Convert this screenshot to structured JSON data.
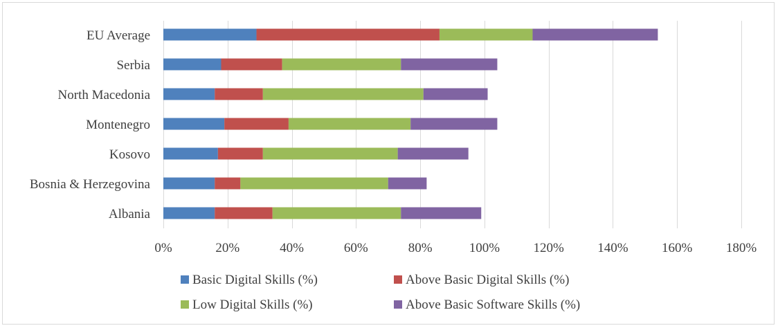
{
  "chart_data": {
    "type": "bar",
    "orientation": "horizontal",
    "stacked": true,
    "title": "",
    "xlabel": "",
    "ylabel": "",
    "xlim": [
      0,
      180
    ],
    "x_ticks": [
      0,
      20,
      40,
      60,
      80,
      100,
      120,
      140,
      160,
      180
    ],
    "x_tick_labels": [
      "0%",
      "20%",
      "40%",
      "60%",
      "80%",
      "100%",
      "120%",
      "140%",
      "160%",
      "180%"
    ],
    "grid": true,
    "legend_position": "bottom",
    "categories": [
      "EU Average",
      "Serbia",
      "North Macedonia",
      "Montenegro",
      "Kosovo",
      "Bosnia & Herzegovina",
      "Albania"
    ],
    "series": [
      {
        "name": "Basic Digital Skills (%)",
        "color": "#4f81bd",
        "values": [
          29,
          18,
          16,
          19,
          17,
          16,
          16
        ]
      },
      {
        "name": "Above Basic Digital Skills (%)",
        "color": "#c0504d",
        "values": [
          57,
          19,
          15,
          20,
          14,
          8,
          18
        ]
      },
      {
        "name": "Low Digital Skills (%)",
        "color": "#9bbb59",
        "values": [
          29,
          37,
          50,
          38,
          42,
          46,
          40
        ]
      },
      {
        "name": "Above Basic Software Skills (%)",
        "color": "#8064a2",
        "values": [
          39,
          30,
          20,
          27,
          22,
          12,
          25
        ]
      }
    ]
  }
}
